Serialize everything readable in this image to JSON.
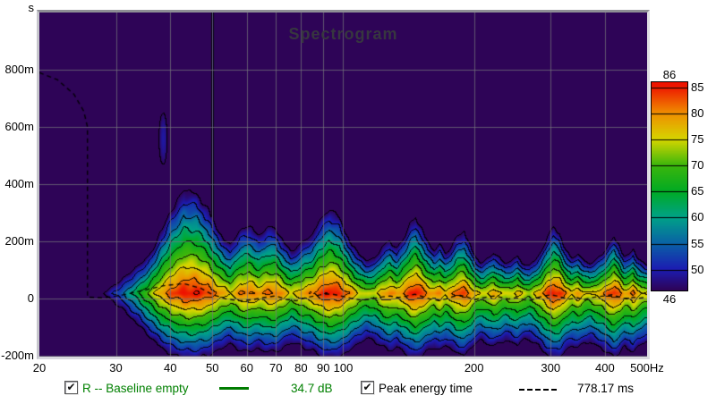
{
  "chart_data": {
    "type": "heatmap",
    "subtype": "spectrogram-contour",
    "title": "Spectrogram",
    "x_axis": {
      "unit": "Hz",
      "scale": "log",
      "min": 20,
      "max": 500,
      "ticks": [
        {
          "label": "20",
          "hz": 20
        },
        {
          "label": "30",
          "hz": 30
        },
        {
          "label": "40",
          "hz": 40
        },
        {
          "label": "50",
          "hz": 50
        },
        {
          "label": "60",
          "hz": 60
        },
        {
          "label": "70",
          "hz": 70
        },
        {
          "label": "80",
          "hz": 80
        },
        {
          "label": "90",
          "hz": 90
        },
        {
          "label": "100",
          "hz": 100
        },
        {
          "label": "200",
          "hz": 200
        },
        {
          "label": "300",
          "hz": 300
        },
        {
          "label": "400",
          "hz": 400
        },
        {
          "label": "500Hz",
          "hz": 500
        }
      ]
    },
    "y_axis": {
      "unit": "s",
      "min_ms": -200,
      "max_ms": 1000,
      "ticks": [
        {
          "label": "800m",
          "ms": 800
        },
        {
          "label": "600m",
          "ms": 600
        },
        {
          "label": "400m",
          "ms": 400
        },
        {
          "label": "200m",
          "ms": 200
        },
        {
          "label": "0",
          "ms": 0
        },
        {
          "label": "-200m",
          "ms": -200
        }
      ]
    },
    "colorbar": {
      "top_label": "86",
      "bottom_label": "46",
      "side_labels": [
        85,
        80,
        75,
        70,
        65,
        60,
        55,
        50
      ],
      "stops": [
        {
          "value": 46,
          "color": "#2e0457"
        },
        {
          "value": 50,
          "color": "#1c1cb2"
        },
        {
          "value": 55,
          "color": "#0a62a6"
        },
        {
          "value": 60,
          "color": "#00a288"
        },
        {
          "value": 65,
          "color": "#00aa24"
        },
        {
          "value": 70,
          "color": "#3ab60c"
        },
        {
          "value": 75,
          "color": "#d6d600"
        },
        {
          "value": 80,
          "color": "#ef9000"
        },
        {
          "value": 85,
          "color": "#ee1c00"
        },
        {
          "value": 86,
          "color": "#ee1200"
        }
      ],
      "contour_step_db": 5,
      "floor_db": 46
    },
    "grid": {
      "color": "rgba(118,118,124,0.72)",
      "on": true
    },
    "background_color": "#2b0455",
    "model": {
      "peak_time_ms": 20,
      "rise_rate_db_per_s": 175,
      "decay_rate_lo_db_per_s": 110,
      "decay_rate_hi_db_per_s": 190,
      "notch_speedup": 1.85,
      "mode_mod_lo_db": 72,
      "mode_mod_range_db": 14,
      "noise_amp_db": 1.1,
      "envelope": [
        [
          20,
          36
        ],
        [
          24,
          38
        ],
        [
          26,
          41
        ],
        [
          28,
          46
        ],
        [
          30,
          52
        ],
        [
          32,
          59
        ],
        [
          34,
          66
        ],
        [
          36,
          73
        ],
        [
          38,
          79
        ],
        [
          40,
          83
        ],
        [
          43,
          86
        ],
        [
          46,
          86
        ],
        [
          49,
          84
        ],
        [
          52,
          80
        ],
        [
          55,
          77
        ],
        [
          58,
          81
        ],
        [
          61,
          82
        ],
        [
          64,
          80
        ],
        [
          67,
          82
        ],
        [
          70,
          82
        ],
        [
          73,
          79
        ],
        [
          76,
          76
        ],
        [
          79,
          78
        ],
        [
          82,
          80
        ],
        [
          85,
          81
        ],
        [
          88,
          84
        ],
        [
          93,
          86
        ],
        [
          98,
          85
        ],
        [
          103,
          81
        ],
        [
          108,
          77
        ],
        [
          113,
          74
        ],
        [
          118,
          75
        ],
        [
          123,
          79
        ],
        [
          128,
          81
        ],
        [
          133,
          79
        ],
        [
          138,
          82
        ],
        [
          143,
          85
        ],
        [
          147,
          86
        ],
        [
          152,
          84
        ],
        [
          157,
          81
        ],
        [
          162,
          79
        ],
        [
          167,
          81
        ],
        [
          172,
          78
        ],
        [
          177,
          80
        ],
        [
          183,
          83
        ],
        [
          190,
          84
        ],
        [
          196,
          81
        ],
        [
          202,
          77
        ],
        [
          208,
          75
        ],
        [
          215,
          77
        ],
        [
          222,
          79
        ],
        [
          229,
          77
        ],
        [
          236,
          75
        ],
        [
          244,
          76
        ],
        [
          252,
          78
        ],
        [
          260,
          75
        ],
        [
          268,
          74
        ],
        [
          277,
          77
        ],
        [
          286,
          80
        ],
        [
          295,
          84
        ],
        [
          305,
          86
        ],
        [
          315,
          85
        ],
        [
          325,
          81
        ],
        [
          336,
          78
        ],
        [
          347,
          80
        ],
        [
          358,
          77
        ],
        [
          370,
          76
        ],
        [
          382,
          78
        ],
        [
          395,
          80
        ],
        [
          408,
          83
        ],
        [
          420,
          85
        ],
        [
          432,
          83
        ],
        [
          444,
          79
        ],
        [
          455,
          80
        ],
        [
          465,
          82
        ],
        [
          476,
          79
        ],
        [
          488,
          77
        ],
        [
          500,
          76
        ]
      ],
      "mains_hum": {
        "freq_hz": 50,
        "level_db": 49,
        "falloff": 2.2,
        "min_ms": 110
      },
      "echo_blob": {
        "freq_hz": 38.5,
        "time_ms": 560,
        "level_db": 49.3,
        "fx_falloff": 0.16,
        "fy_falloff": 0.004
      }
    },
    "peak_energy_line_f_ms": [
      [
        20,
        790
      ],
      [
        22,
        765
      ],
      [
        24,
        715
      ],
      [
        25.3,
        655
      ],
      [
        25.8,
        600
      ],
      [
        25.8,
        5
      ],
      [
        28,
        2
      ],
      [
        31,
        12
      ],
      [
        35,
        30
      ],
      [
        39,
        46
      ],
      [
        43,
        52
      ],
      [
        47,
        36
      ],
      [
        50,
        14
      ],
      [
        54,
        -2
      ],
      [
        58,
        -8
      ],
      [
        62,
        -4
      ],
      [
        66,
        4
      ],
      [
        70,
        9
      ],
      [
        74,
        -3
      ],
      [
        78,
        -8
      ],
      [
        82,
        3
      ],
      [
        86,
        9
      ],
      [
        90,
        15
      ],
      [
        94,
        16
      ],
      [
        98,
        10
      ],
      [
        104,
        1
      ],
      [
        110,
        -6
      ],
      [
        116,
        -2
      ],
      [
        122,
        5
      ],
      [
        128,
        9
      ],
      [
        134,
        3
      ],
      [
        140,
        9
      ],
      [
        146,
        15
      ],
      [
        152,
        7
      ],
      [
        158,
        -1
      ],
      [
        165,
        -6
      ],
      [
        172,
        -2
      ],
      [
        179,
        7
      ],
      [
        186,
        11
      ],
      [
        193,
        5
      ],
      [
        200,
        -4
      ],
      [
        208,
        1
      ],
      [
        216,
        7
      ],
      [
        224,
        9
      ],
      [
        232,
        3
      ],
      [
        240,
        -2
      ],
      [
        250,
        3
      ],
      [
        260,
        -4
      ],
      [
        270,
        -6
      ],
      [
        280,
        3
      ],
      [
        290,
        9
      ],
      [
        300,
        13
      ],
      [
        310,
        9
      ],
      [
        320,
        3
      ],
      [
        332,
        -2
      ],
      [
        345,
        3
      ],
      [
        358,
        -4
      ],
      [
        372,
        3
      ],
      [
        386,
        7
      ],
      [
        400,
        9
      ],
      [
        415,
        13
      ],
      [
        428,
        7
      ],
      [
        440,
        1
      ],
      [
        452,
        -2
      ],
      [
        465,
        5
      ],
      [
        478,
        1
      ],
      [
        490,
        3
      ],
      [
        500,
        1
      ]
    ]
  },
  "legend": {
    "trace": {
      "checkbox_checked": "✔",
      "label": "R -- Baseline empty",
      "value": "34.7 dB",
      "color": "#008000"
    },
    "peak": {
      "checkbox_checked": "✔",
      "label": "Peak energy time",
      "value": "778.17 ms",
      "color": "#000000"
    }
  }
}
